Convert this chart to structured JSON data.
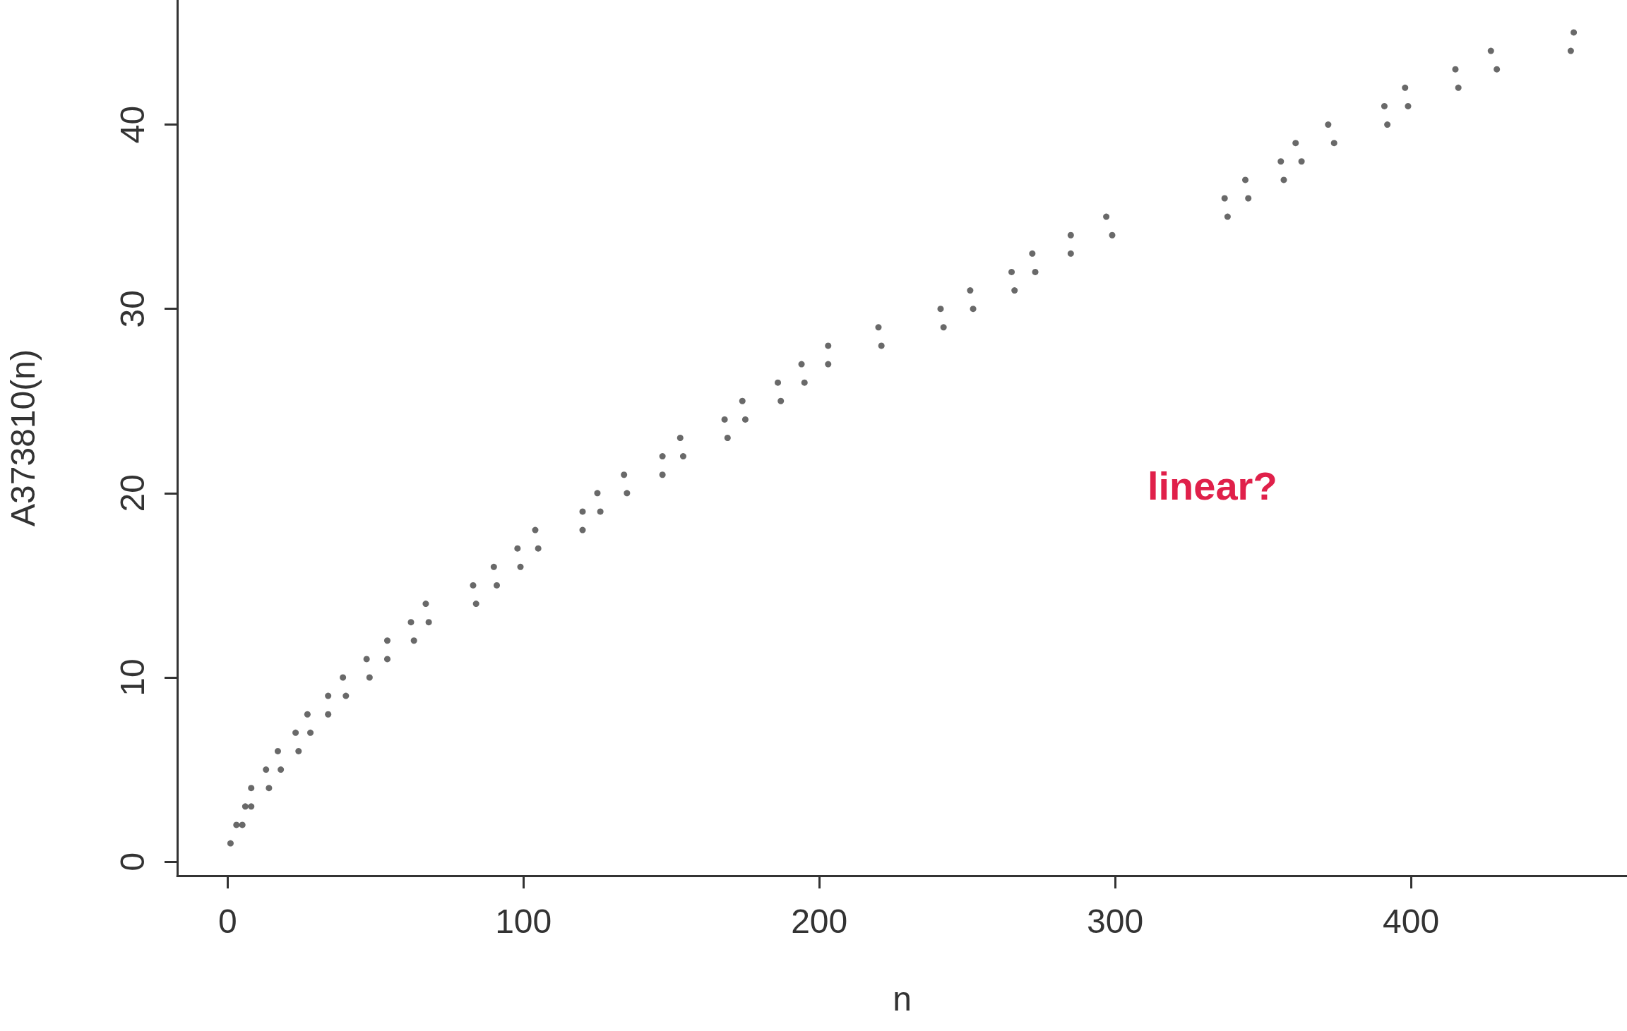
{
  "chart_data": {
    "type": "scatter",
    "xlabel": "n",
    "ylabel": "A373810(n)",
    "annotations": [
      "linear?"
    ],
    "x": [
      1,
      3,
      5,
      6,
      8,
      8,
      14,
      13,
      18,
      17,
      24,
      23,
      28,
      27,
      34,
      34,
      40,
      39,
      48,
      47,
      54,
      54,
      63,
      62,
      68,
      67,
      84,
      83,
      91,
      90,
      99,
      98,
      105,
      104,
      120,
      120,
      126,
      125,
      135,
      134,
      147,
      147,
      154,
      153,
      169,
      168,
      175,
      174,
      187,
      186,
      195,
      194,
      203,
      203,
      221,
      220,
      242,
      241,
      252,
      251,
      266,
      265,
      273,
      272,
      285,
      285,
      299,
      297,
      338,
      337,
      345,
      344,
      357,
      356,
      363,
      361,
      374,
      372,
      392,
      391,
      399,
      398,
      416,
      415,
      429,
      427,
      454,
      455
    ],
    "values": [
      1,
      2,
      2,
      3,
      3,
      4,
      4,
      5,
      5,
      6,
      6,
      7,
      7,
      8,
      8,
      9,
      9,
      10,
      10,
      11,
      11,
      12,
      12,
      13,
      13,
      14,
      14,
      15,
      15,
      16,
      16,
      17,
      17,
      18,
      18,
      19,
      19,
      20,
      20,
      21,
      21,
      22,
      22,
      23,
      23,
      24,
      24,
      25,
      25,
      26,
      26,
      27,
      27,
      28,
      28,
      29,
      29,
      30,
      30,
      31,
      31,
      32,
      32,
      33,
      33,
      34,
      34,
      35,
      35,
      36,
      36,
      37,
      37,
      38,
      38,
      39,
      39,
      40,
      40,
      41,
      41,
      42,
      42,
      43,
      43,
      44,
      44,
      45
    ],
    "color": "#444444",
    "marker": "circle",
    "grid": false,
    "xlim": [
      -17,
      473
    ],
    "ylim": [
      -0.76,
      46.76
    ],
    "xticks": [
      0,
      100,
      200,
      300,
      400
    ],
    "yticks": [
      0,
      10,
      20,
      30,
      40
    ]
  }
}
